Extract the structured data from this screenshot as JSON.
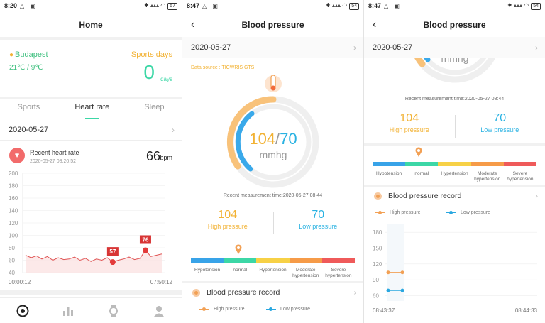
{
  "screen1": {
    "status": {
      "time": "8:20",
      "battery": "57"
    },
    "title": "Home",
    "weather": {
      "city": "Budapest",
      "temperature": "21℃ / 9℃"
    },
    "sports_days": {
      "label": "Sports days",
      "value": "0",
      "unit": "days"
    },
    "tabs": [
      {
        "label": "Sports",
        "active": false
      },
      {
        "label": "Heart rate",
        "active": true
      },
      {
        "label": "Sleep",
        "active": false
      }
    ],
    "date": "2020-05-27",
    "heart_rate": {
      "title": "Recent heart rate",
      "timestamp": "2020-05-27 08:20:52",
      "value": "66",
      "unit": "bpm"
    },
    "chart_data": {
      "type": "line",
      "y_ticks": [
        "200",
        "180",
        "160",
        "140",
        "120",
        "100",
        "80",
        "60",
        "40"
      ],
      "ylim": [
        40,
        200
      ],
      "x_start_label": "00:00:12",
      "x_end_label": "07:50:12",
      "series": [
        {
          "values": [
            68,
            64,
            67,
            62,
            66,
            60,
            64,
            61,
            62,
            65,
            60,
            63,
            58,
            62,
            60,
            64,
            57,
            60,
            62,
            65,
            61,
            63,
            76,
            66,
            68,
            70
          ]
        }
      ],
      "min_label": "57",
      "max_label": "76",
      "line_color": "#e05555",
      "fill_color": "#fbe3e3"
    },
    "nav_icons": [
      "home-icon",
      "stats-icon",
      "watch-icon",
      "profile-icon"
    ]
  },
  "screen2": {
    "status": {
      "time": "8:47",
      "battery": "54"
    },
    "title": "Blood pressure",
    "date": "2020-05-27",
    "data_source": "Data source : TICWRIS GTS",
    "reading": {
      "high": "104",
      "slash": "/",
      "low": "70",
      "unit": "mmhg"
    },
    "measurement_time": "Recent measurement time:2020-05-27 08:44",
    "high_label": "High pressure",
    "low_label": "Low pressure",
    "scale": [
      {
        "label": "Hypotension",
        "color": "#38a3e8"
      },
      {
        "label": "normal",
        "color": "#3cd7a6"
      },
      {
        "label": "Hypertension",
        "color": "#f7d146"
      },
      {
        "label": "Moderate hypertension",
        "color": "#f69b48"
      },
      {
        "label": "Severe hypertension",
        "color": "#ef5a5a"
      }
    ],
    "record_title": "Blood pressure record",
    "legend_high": "High pressure",
    "legend_low": "Low pressure"
  },
  "screen3": {
    "status": {
      "time": "8:47",
      "battery": "54"
    },
    "title": "Blood pressure",
    "date": "2020-05-27",
    "unit": "mmhg",
    "measurement_time": "Recent measurement time:2020-05-27 08:44",
    "high": "104",
    "low": "70",
    "high_label": "High pressure",
    "low_label": "Low pressure",
    "scale": [
      {
        "label": "Hypotension",
        "color": "#38a3e8"
      },
      {
        "label": "normal",
        "color": "#3cd7a6"
      },
      {
        "label": "Hypertension",
        "color": "#f7d146"
      },
      {
        "label": "Moderate hypertension",
        "color": "#f69b48"
      },
      {
        "label": "Severe hypertension",
        "color": "#ef5a5a"
      }
    ],
    "record_title": "Blood pressure record",
    "legend_high": "High pressure",
    "legend_low": "Low pressure",
    "chart_data": {
      "type": "line",
      "y_ticks": [
        "180",
        "150",
        "120",
        "90",
        "60"
      ],
      "ylim": [
        50,
        195
      ],
      "x_start_label": "08:43:37",
      "x_end_label": "08:44:33",
      "series": [
        {
          "name": "High pressure",
          "values": [
            104,
            104
          ],
          "color": "#f2a054"
        },
        {
          "name": "Low pressure",
          "values": [
            70,
            70
          ],
          "color": "#29a7e0"
        }
      ]
    }
  }
}
